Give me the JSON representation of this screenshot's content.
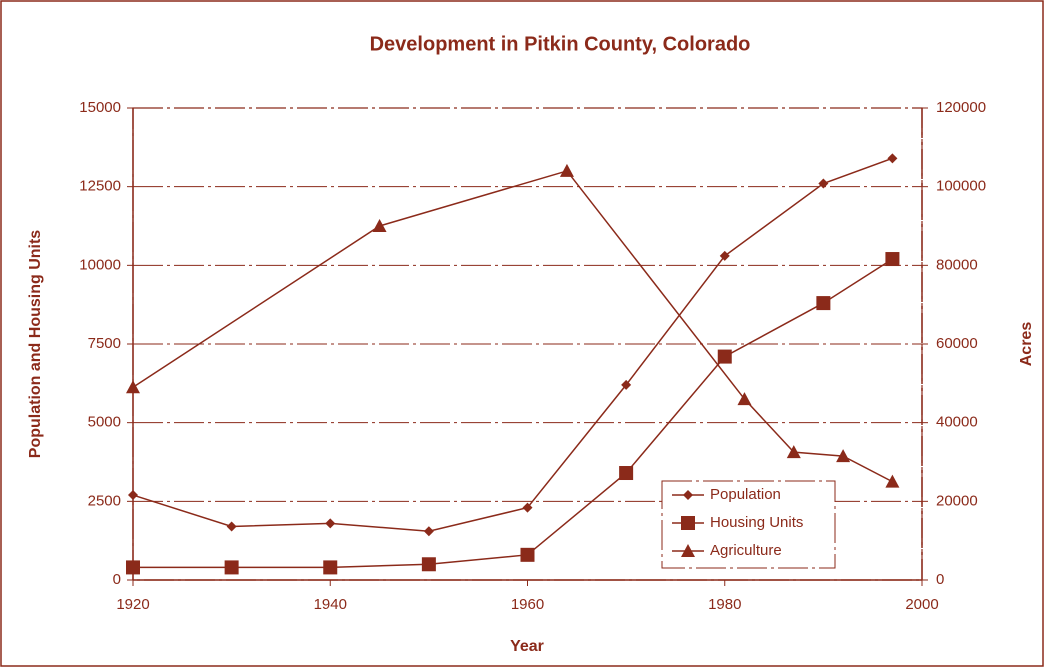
{
  "chart_data": {
    "type": "line",
    "title": "Development in Pitkin County, Colorado",
    "xlabel": "Year",
    "ylabel": "Population and Housing Units",
    "y2label": "Acres",
    "xlim": [
      1920,
      2000
    ],
    "xticks": [
      1920,
      1940,
      1960,
      1980,
      2000
    ],
    "ylim": [
      0,
      15000
    ],
    "yticks": [
      0,
      2500,
      5000,
      7500,
      10000,
      12500,
      15000
    ],
    "y2lim": [
      0,
      120000
    ],
    "y2ticks": [
      0,
      20000,
      40000,
      60000,
      80000,
      100000,
      120000
    ],
    "grid": true,
    "legend": "lower right",
    "color": "#8b2a1a",
    "series": [
      {
        "name": "Population",
        "marker": "diamond",
        "color": "#8b2a1a",
        "x": [
          1920,
          1930,
          1940,
          1950,
          1960,
          1970,
          1980,
          1990,
          1997
        ],
        "values": [
          2700,
          1700,
          1800,
          1550,
          2300,
          6200,
          10300,
          12600,
          13400
        ]
      },
      {
        "name": "Housing Units",
        "marker": "square",
        "color": "#8b2a1a",
        "x": [
          1920,
          1930,
          1940,
          1950,
          1960,
          1970,
          1980,
          1990,
          1997
        ],
        "values": [
          400,
          400,
          400,
          500,
          800,
          3400,
          7100,
          8800,
          10200
        ]
      },
      {
        "name": "Agriculture",
        "marker": "triangle",
        "color": "#8b2a1a",
        "axis": "y2",
        "x": [
          1920,
          1945,
          1964,
          1982,
          1987,
          1992,
          1997
        ],
        "values": [
          49000,
          90000,
          104000,
          46000,
          32500,
          31500,
          25000
        ]
      }
    ]
  }
}
